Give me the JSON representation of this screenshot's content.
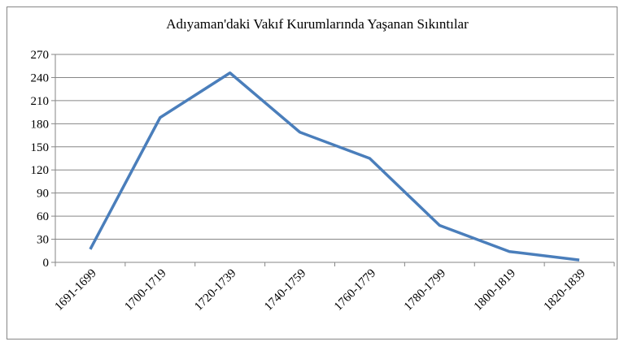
{
  "chart_data": {
    "type": "line",
    "title": "Adıyaman'daki Vakıf Kurumlarında Yaşanan Sıkıntılar",
    "categories": [
      "1691-1699",
      "1700-1719",
      "1720-1739",
      "1740-1759",
      "1760-1779",
      "1780-1799",
      "1800-1819",
      "1820-1839"
    ],
    "values": [
      17,
      188,
      246,
      169,
      135,
      48,
      14,
      3
    ],
    "color": "#4a7ebb",
    "ylim": [
      0,
      270
    ],
    "yticks": [
      0,
      30,
      60,
      90,
      120,
      150,
      180,
      210,
      240,
      270
    ],
    "grid": true
  }
}
